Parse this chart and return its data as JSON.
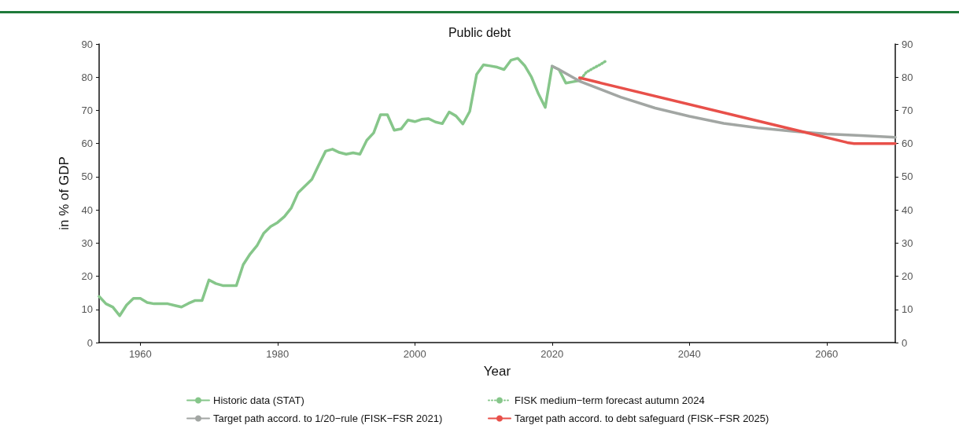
{
  "chart_data": {
    "type": "line",
    "title": "Public debt",
    "xlabel": "Year",
    "ylabel": "in % of GDP",
    "xlim": [
      1954,
      2070
    ],
    "xticks": [
      1960,
      1980,
      2000,
      2020,
      2040,
      2060
    ],
    "ylim": [
      0,
      90
    ],
    "yticks": [
      0,
      10,
      20,
      30,
      40,
      50,
      60,
      70,
      80,
      90
    ],
    "y2lim": [
      0,
      90
    ],
    "y2ticks": [
      0,
      10,
      20,
      30,
      40,
      50,
      60,
      70,
      80,
      90
    ],
    "grid": false,
    "legend": "bottom",
    "marker": "none",
    "series": [
      {
        "name": "Historic data (STAT)",
        "color": "#86c68a",
        "line_style": "solid",
        "x": [
          1954,
          1955,
          1956,
          1957,
          1958,
          1959,
          1960,
          1961,
          1962,
          1963,
          1964,
          1965,
          1966,
          1967,
          1968,
          1969,
          1970,
          1971,
          1972,
          1973,
          1974,
          1975,
          1976,
          1977,
          1978,
          1979,
          1980,
          1981,
          1982,
          1983,
          1984,
          1985,
          1986,
          1987,
          1988,
          1989,
          1990,
          1991,
          1992,
          1993,
          1994,
          1995,
          1996,
          1997,
          1998,
          1999,
          2000,
          2001,
          2002,
          2003,
          2004,
          2005,
          2006,
          2007,
          2008,
          2009,
          2010,
          2011,
          2012,
          2013,
          2014,
          2015,
          2016,
          2017,
          2018,
          2019,
          2020,
          2021,
          2022,
          2023,
          2024
        ],
        "values": [
          13.9,
          11.7,
          10.7,
          8.1,
          11.3,
          13.3,
          13.3,
          12.1,
          11.7,
          11.7,
          11.7,
          11.2,
          10.7,
          11.8,
          12.7,
          12.7,
          18.9,
          17.8,
          17.2,
          17.2,
          17.2,
          23.5,
          26.7,
          29.2,
          33,
          35,
          36.2,
          38,
          40.6,
          45.2,
          47.2,
          49.2,
          53.5,
          57.7,
          58.3,
          57.3,
          56.8,
          57.2,
          56.8,
          61,
          63.2,
          68.7,
          68.7,
          64,
          64.4,
          67.1,
          66.6,
          67.3,
          67.5,
          66.5,
          66,
          69.5,
          68.3,
          65.9,
          69.7,
          80.8,
          83.7,
          83.4,
          83,
          82.3,
          85.1,
          85.7,
          83.5,
          80,
          75,
          70.9,
          83.3,
          82.3,
          78.2,
          78.6,
          79
        ]
      },
      {
        "name": "FISK medium−term forecast autumn 2024",
        "color": "#86c68a",
        "line_style": "dotted",
        "x": [
          2024,
          2025,
          2026,
          2027,
          2028
        ],
        "values": [
          79,
          81.5,
          82.7,
          83.8,
          85.1
        ]
      },
      {
        "name": "Target path accord. to 1/20−rule (FISK−FSR 2021)",
        "color": "#a2a6a3",
        "line_style": "solid",
        "x": [
          2020,
          2021,
          2024,
          2030,
          2035,
          2040,
          2045,
          2050,
          2055,
          2060,
          2065,
          2070
        ],
        "values": [
          83.3,
          82.3,
          78.8,
          74,
          70.7,
          68.2,
          66.1,
          64.7,
          63.7,
          62.9,
          62.4,
          61.9
        ]
      },
      {
        "name": "Target path accord. to debt safeguard (FISK−FSR 2025)",
        "color": "#e8504a",
        "line_style": "solid",
        "x": [
          2024,
          2063,
          2064,
          2070
        ],
        "values": [
          79.8,
          60.3,
          60,
          60
        ]
      }
    ]
  }
}
